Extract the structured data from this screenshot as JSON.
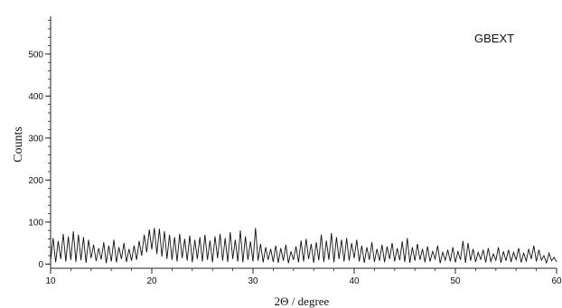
{
  "chart_data": {
    "type": "line",
    "title": "",
    "annotation": "GBEXT",
    "xlabel": "2Θ /  degree",
    "ylabel": "Counts",
    "xlim": [
      10,
      60
    ],
    "ylim": [
      -10,
      590
    ],
    "xticks": [
      10,
      20,
      30,
      40,
      50,
      60
    ],
    "yticks": [
      0,
      100,
      200,
      300,
      400,
      500
    ],
    "grid": false,
    "legend": "none",
    "colors": {
      "line": "#111111",
      "axis": "#222222"
    },
    "series": [
      {
        "x": [
          10.0,
          10.25,
          10.5,
          10.75,
          11.0,
          11.25,
          11.5,
          11.75,
          12.0,
          12.25,
          12.5,
          12.75,
          13.0,
          13.25,
          13.5,
          13.75,
          14.0,
          14.25,
          14.5,
          14.75,
          15.0,
          15.25,
          15.5,
          15.75,
          16.0,
          16.25,
          16.5,
          16.75,
          17.0,
          17.25,
          17.5,
          17.75,
          18.0,
          18.25,
          18.5,
          18.75,
          19.0,
          19.25,
          19.5,
          19.75,
          20.0,
          20.25,
          20.5,
          20.75,
          21.0,
          21.25,
          21.5,
          21.75,
          22.0,
          22.25,
          22.5,
          22.75,
          23.0,
          23.25,
          23.5,
          23.75,
          24.0,
          24.25,
          24.5,
          24.75,
          25.0,
          25.25,
          25.5,
          25.75,
          26.0,
          26.25,
          26.5,
          26.75,
          27.0,
          27.25,
          27.5,
          27.75,
          28.0,
          28.25,
          28.5,
          28.75,
          29.0,
          29.25,
          29.5,
          29.75,
          30.0,
          30.25,
          30.5,
          30.75,
          31.0,
          31.25,
          31.5,
          31.75,
          32.0,
          32.25,
          32.5,
          32.75,
          33.0,
          33.25,
          33.5,
          33.75,
          34.0,
          34.25,
          34.5,
          34.75,
          35.0,
          35.25,
          35.5,
          35.75,
          36.0,
          36.25,
          36.5,
          36.75,
          37.0,
          37.25,
          37.5,
          37.75,
          38.0,
          38.25,
          38.5,
          38.75,
          39.0,
          39.25,
          39.5,
          39.75,
          40.0,
          40.25,
          40.5,
          40.75,
          41.0,
          41.25,
          41.5,
          41.75,
          42.0,
          42.25,
          42.5,
          42.75,
          43.0,
          43.25,
          43.5,
          43.75,
          44.0,
          44.25,
          44.5,
          44.75,
          45.0,
          45.25,
          45.5,
          45.75,
          46.0,
          46.25,
          46.5,
          46.75,
          47.0,
          47.25,
          47.5,
          47.75,
          48.0,
          48.25,
          48.5,
          48.75,
          49.0,
          49.25,
          49.5,
          49.75,
          50.0,
          50.25,
          50.5,
          50.75,
          51.0,
          51.25,
          51.5,
          51.75,
          52.0,
          52.25,
          52.5,
          52.75,
          53.0,
          53.25,
          53.5,
          53.75,
          54.0,
          54.25,
          54.5,
          54.75,
          55.0,
          55.25,
          55.5,
          55.75,
          56.0,
          56.25,
          56.5,
          56.75,
          57.0,
          57.25,
          57.5,
          57.75,
          58.0,
          58.25,
          58.5,
          58.75,
          59.0,
          59.25,
          59.5,
          59.75,
          60.0
        ],
        "values": [
          8,
          62,
          4,
          55,
          12,
          72,
          6,
          66,
          10,
          78,
          5,
          70,
          9,
          64,
          3,
          58,
          14,
          46,
          7,
          38,
          11,
          52,
          2,
          44,
          6,
          58,
          4,
          40,
          12,
          50,
          5,
          36,
          8,
          44,
          10,
          55,
          20,
          70,
          28,
          82,
          35,
          86,
          24,
          84,
          18,
          78,
          12,
          70,
          10,
          64,
          6,
          72,
          14,
          60,
          8,
          68,
          4,
          58,
          12,
          64,
          6,
          70,
          10,
          56,
          4,
          66,
          14,
          72,
          8,
          62,
          5,
          76,
          12,
          58,
          6,
          80,
          4,
          66,
          10,
          54,
          6,
          86,
          8,
          48,
          4,
          40,
          10,
          36,
          5,
          44,
          3,
          38,
          8,
          46,
          2,
          30,
          10,
          42,
          4,
          56,
          6,
          60,
          12,
          48,
          3,
          52,
          9,
          70,
          5,
          56,
          10,
          74,
          4,
          64,
          12,
          58,
          6,
          62,
          8,
          50,
          14,
          58,
          6,
          44,
          3,
          40,
          10,
          52,
          5,
          36,
          8,
          46,
          4,
          42,
          12,
          50,
          6,
          38,
          9,
          54,
          5,
          62,
          3,
          40,
          8,
          48,
          10,
          36,
          4,
          42,
          6,
          30,
          12,
          44,
          2,
          28,
          9,
          34,
          6,
          40,
          4,
          30,
          10,
          55,
          3,
          50,
          8,
          36,
          5,
          28,
          11,
          34,
          4,
          38,
          6,
          24,
          9,
          40,
          3,
          30,
          8,
          34,
          5,
          28,
          10,
          38,
          4,
          26,
          7,
          36,
          12,
          44,
          6,
          34,
          9,
          20,
          3,
          26,
          8,
          16,
          5
        ]
      }
    ]
  }
}
